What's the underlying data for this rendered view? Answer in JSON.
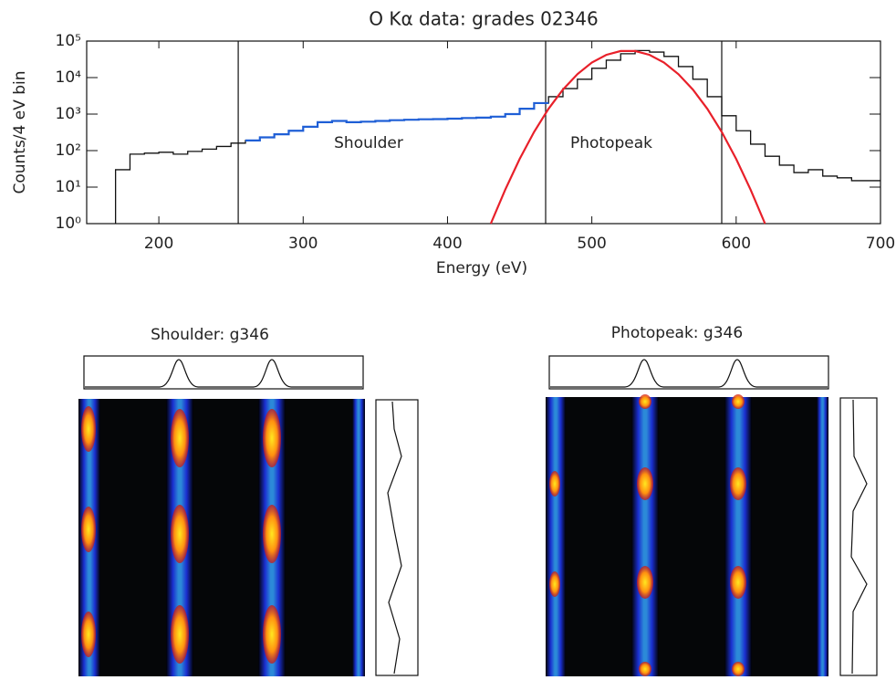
{
  "chart_data": {
    "type": "line",
    "title": "O Kα data: grades 02346",
    "x_label": "Energy (eV)",
    "y_label": "Counts/4 eV bin",
    "xlim": [
      150,
      700
    ],
    "xticks": [
      200,
      300,
      400,
      500,
      600,
      700
    ],
    "ylim": [
      1,
      100000
    ],
    "log_y": true,
    "yticks": [
      {
        "value": 1,
        "label": "10⁰"
      },
      {
        "value": 10,
        "label": "10¹"
      },
      {
        "value": 100,
        "label": "10²"
      },
      {
        "value": 1000,
        "label": "10³"
      },
      {
        "value": 10000,
        "label": "10⁴"
      },
      {
        "value": 100000,
        "label": "10⁵"
      }
    ],
    "vlines": [
      255,
      468,
      590
    ],
    "annotations": [
      "Shoulder",
      "Photopeak"
    ],
    "series": [
      {
        "color": "#111111",
        "step": true,
        "x": [
          170,
          180,
          190,
          200,
          210,
          220,
          230,
          240,
          250,
          260,
          270,
          280,
          290,
          300,
          310,
          320,
          330,
          340,
          350,
          360,
          370,
          380,
          390,
          400,
          410,
          420,
          430,
          440,
          450,
          460,
          470,
          480,
          490,
          500,
          510,
          520,
          530,
          540,
          550,
          560,
          570,
          580,
          590,
          600,
          610,
          620,
          630,
          640,
          650,
          660,
          670,
          680,
          690
        ],
        "values": [
          30,
          80,
          85,
          90,
          80,
          95,
          110,
          130,
          160,
          190,
          230,
          280,
          350,
          450,
          600,
          650,
          600,
          620,
          650,
          680,
          700,
          720,
          730,
          750,
          780,
          800,
          850,
          1000,
          1400,
          2000,
          3000,
          5000,
          9000,
          18000,
          30000,
          45000,
          55000,
          50000,
          38000,
          20000,
          9000,
          3000,
          900,
          350,
          150,
          70,
          40,
          25,
          30,
          20,
          18,
          15,
          15
        ]
      },
      {
        "color": "#1f5fd6",
        "step": true,
        "x": [
          260,
          270,
          280,
          290,
          300,
          310,
          320,
          330,
          340,
          350,
          360,
          370,
          380,
          390,
          400,
          410,
          420,
          430,
          440,
          450,
          460
        ],
        "values": [
          190,
          230,
          280,
          350,
          450,
          600,
          650,
          600,
          620,
          650,
          680,
          700,
          720,
          730,
          750,
          780,
          800,
          850,
          1000,
          1400,
          2000
        ]
      },
      {
        "color": "#e8202a",
        "step": false,
        "x": [
          430,
          440,
          450,
          460,
          470,
          480,
          490,
          500,
          510,
          520,
          530,
          540,
          550,
          560,
          570,
          580,
          590,
          600,
          610,
          620
        ],
        "values": [
          1,
          8.5,
          59,
          325,
          1400,
          4700,
          12400,
          25800,
          41900,
          53400,
          53400,
          41900,
          25800,
          12400,
          4700,
          1400,
          325,
          59,
          8.5,
          1
        ]
      }
    ]
  },
  "panels": [
    {
      "title": "Shoulder:  g346"
    },
    {
      "title": "Photopeak:  g346"
    }
  ]
}
